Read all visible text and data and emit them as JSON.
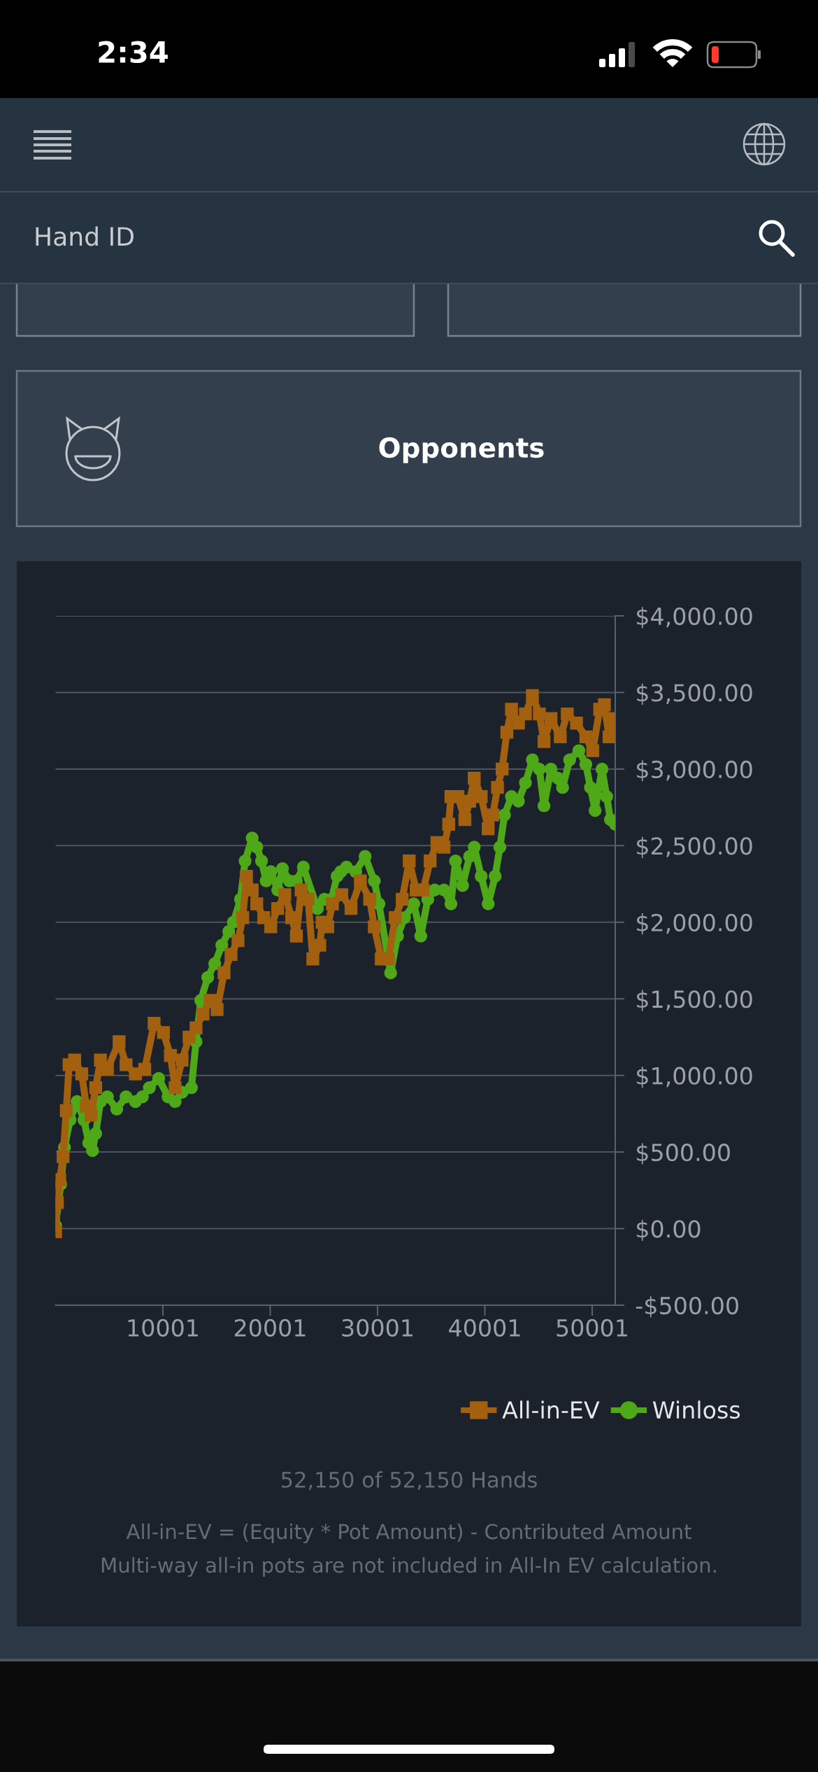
{
  "chart_data": {
    "type": "line",
    "series": [
      {
        "name": "All-in-EV",
        "color": "#a3600e",
        "marker": "square",
        "x": [
          1,
          170,
          390,
          700,
          1000,
          1260,
          1780,
          2440,
          2870,
          3300,
          3740,
          4180,
          4830,
          5920,
          6570,
          7440,
          8310,
          9180,
          10050,
          10700,
          11140,
          11790,
          12440,
          13090,
          13740,
          14400,
          15050,
          15700,
          16350,
          17000,
          17440,
          17790,
          18320,
          18750,
          19400,
          20050,
          20700,
          21360,
          22000,
          22440,
          22880,
          23530,
          23970,
          24620,
          24840,
          25360,
          25800,
          26670,
          27530,
          28400,
          29270,
          29700,
          30350,
          31000,
          31650,
          32300,
          32950,
          33600,
          34250,
          34900,
          35540,
          36190,
          36630,
          36840,
          37490,
          38140,
          38580,
          39010,
          39660,
          40310,
          40740,
          41180,
          41610,
          42050,
          42480,
          43130,
          43780,
          44430,
          45080,
          45510,
          46160,
          47030,
          47680,
          48540,
          49410,
          50050,
          50700,
          51140,
          51570,
          51870,
          52150
        ],
        "values": [
          -20,
          170,
          320,
          470,
          770,
          1070,
          1100,
          1010,
          800,
          740,
          920,
          1100,
          1040,
          1220,
          1070,
          1010,
          1040,
          1340,
          1280,
          1130,
          920,
          1100,
          1250,
          1310,
          1400,
          1490,
          1430,
          1670,
          1790,
          1880,
          2030,
          2300,
          2210,
          2120,
          2030,
          1970,
          2090,
          2180,
          2030,
          1910,
          2210,
          2150,
          1760,
          1850,
          2000,
          1970,
          2120,
          2180,
          2090,
          2270,
          2150,
          1970,
          1760,
          1760,
          2030,
          2150,
          2400,
          2210,
          2210,
          2400,
          2520,
          2490,
          2640,
          2820,
          2820,
          2670,
          2790,
          2940,
          2820,
          2610,
          2700,
          2880,
          3000,
          3240,
          3390,
          3300,
          3360,
          3480,
          3360,
          3180,
          3330,
          3210,
          3360,
          3300,
          3210,
          3120,
          3390,
          3420,
          3210,
          3330,
          3210
        ]
      },
      {
        "name": "Winloss",
        "color": "#4fa818",
        "marker": "circle",
        "x": [
          1,
          480,
          830,
          1350,
          2000,
          2650,
          3090,
          3440,
          3740,
          4180,
          4830,
          5700,
          6570,
          7440,
          8090,
          8740,
          9610,
          10480,
          11140,
          11790,
          12660,
          13090,
          13530,
          14180,
          14830,
          15490,
          16140,
          16570,
          17230,
          17660,
          18320,
          18750,
          19190,
          19620,
          20050,
          20700,
          21140,
          21790,
          22440,
          23090,
          24400,
          25050,
          25710,
          26230,
          26580,
          27110,
          27970,
          28840,
          29700,
          30130,
          31220,
          31860,
          32510,
          33380,
          34030,
          34680,
          35320,
          36190,
          36840,
          37270,
          37920,
          38580,
          39010,
          39660,
          40310,
          40960,
          41400,
          41830,
          42480,
          43130,
          43780,
          44430,
          45080,
          45510,
          46160,
          46810,
          47240,
          47900,
          48760,
          49410,
          49840,
          50270,
          50920,
          51350,
          51700,
          52150
        ],
        "values": [
          20,
          290,
          530,
          710,
          830,
          710,
          560,
          510,
          620,
          830,
          860,
          780,
          860,
          830,
          860,
          920,
          980,
          860,
          830,
          890,
          920,
          1220,
          1490,
          1640,
          1730,
          1850,
          1940,
          2000,
          2150,
          2400,
          2550,
          2490,
          2400,
          2270,
          2330,
          2210,
          2350,
          2270,
          2270,
          2360,
          2090,
          2150,
          2150,
          2300,
          2330,
          2360,
          2330,
          2430,
          2270,
          2120,
          1670,
          1910,
          2030,
          2120,
          1910,
          2150,
          2210,
          2210,
          2120,
          2400,
          2240,
          2430,
          2490,
          2300,
          2120,
          2300,
          2490,
          2700,
          2820,
          2790,
          2910,
          3060,
          3000,
          2760,
          3000,
          2940,
          2880,
          3060,
          3120,
          3030,
          2880,
          2730,
          3000,
          2820,
          2670,
          2640
        ]
      }
    ],
    "xlim": [
      1,
      52150
    ],
    "xticks": [
      10001,
      20001,
      30001,
      40001,
      50001
    ],
    "ylim": [
      -500,
      4000
    ],
    "yticks": [
      {
        "value": -500,
        "label": "-$500.00"
      },
      {
        "value": 0,
        "label": "$0.00"
      },
      {
        "value": 500,
        "label": "$500.00"
      },
      {
        "value": 1000,
        "label": "$1,000.00"
      },
      {
        "value": 1500,
        "label": "$1,500.00"
      },
      {
        "value": 2000,
        "label": "$2,000.00"
      },
      {
        "value": 2500,
        "label": "$2,500.00"
      },
      {
        "value": 3000,
        "label": "$3,000.00"
      },
      {
        "value": 3500,
        "label": "$3,500.00"
      },
      {
        "value": 4000,
        "label": "$4,000.00"
      }
    ],
    "grid": "y",
    "legend": "bottom right",
    "annotations": [
      "2:34",
      "Hand ID",
      "Opponents",
      "52,150 of 52,150 Hands",
      "All-in-EV = (Equity * Pot Amount) - Contributed Amount",
      "Multi-way all-in pots are not included in All-In EV calculation."
    ]
  }
}
